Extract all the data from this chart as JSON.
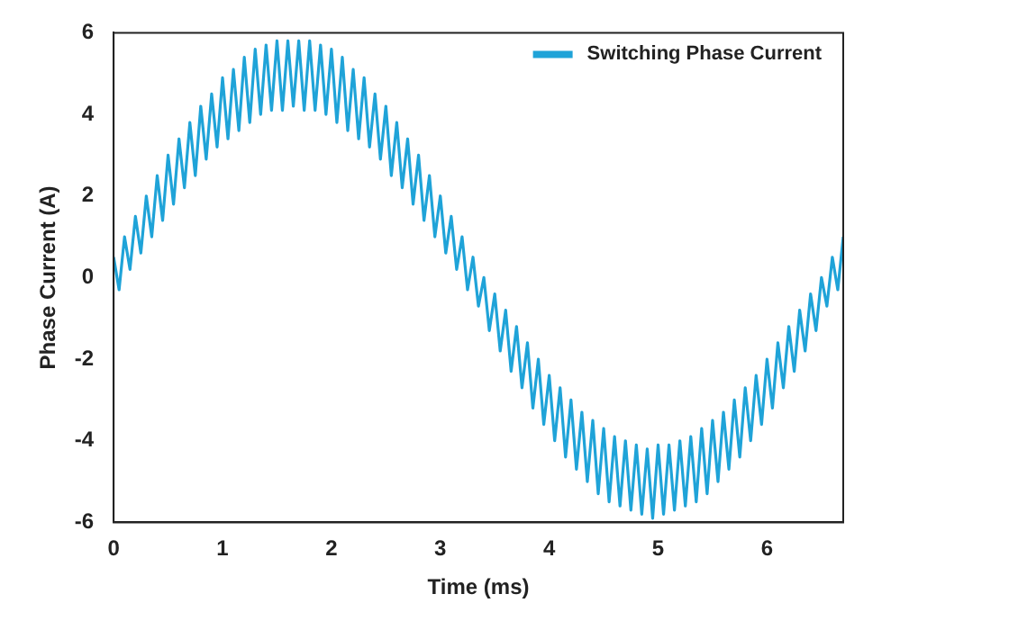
{
  "chart_data": {
    "type": "line",
    "xlabel": "Time (ms)",
    "ylabel": "Phase Current (A)",
    "xlim": [
      0,
      6.7
    ],
    "xticks": [
      0,
      1,
      2,
      3,
      4,
      5,
      6
    ],
    "ylim": [
      -6,
      6
    ],
    "yticks": [
      -6,
      -4,
      -2,
      0,
      2,
      4,
      6
    ],
    "grid": false,
    "legend": "top right",
    "marker": "none",
    "line_style": "solid",
    "series": [
      {
        "name": "Switching Phase Current",
        "color": "#1fa3d8",
        "x": [
          0,
          0.05,
          0.1,
          0.15,
          0.2,
          0.25,
          0.3,
          0.35,
          0.4,
          0.45,
          0.5,
          0.55,
          0.6,
          0.65,
          0.7,
          0.75,
          0.8,
          0.85,
          0.9,
          0.95,
          1.0,
          1.05,
          1.1,
          1.15,
          1.2,
          1.25,
          1.3,
          1.35,
          1.4,
          1.45,
          1.5,
          1.55,
          1.6,
          1.65,
          1.7,
          1.75,
          1.8,
          1.85,
          1.9,
          1.95,
          2.0,
          2.05,
          2.1,
          2.15,
          2.2,
          2.25,
          2.3,
          2.35,
          2.4,
          2.45,
          2.5,
          2.55,
          2.6,
          2.65,
          2.7,
          2.75,
          2.8,
          2.85,
          2.9,
          2.95,
          3.0,
          3.05,
          3.1,
          3.15,
          3.2,
          3.25,
          3.3,
          3.35,
          3.4,
          3.45,
          3.5,
          3.55,
          3.6,
          3.65,
          3.7,
          3.75,
          3.8,
          3.85,
          3.9,
          3.95,
          4.0,
          4.05,
          4.1,
          4.15,
          4.2,
          4.25,
          4.3,
          4.35,
          4.4,
          4.45,
          4.5,
          4.55,
          4.6,
          4.65,
          4.7,
          4.75,
          4.8,
          4.85,
          4.9,
          4.95,
          5.0,
          5.05,
          5.1,
          5.15,
          5.2,
          5.25,
          5.3,
          5.35,
          5.4,
          5.45,
          5.5,
          5.55,
          5.6,
          5.65,
          5.7,
          5.75,
          5.8,
          5.85,
          5.9,
          5.95,
          6.0,
          6.05,
          6.1,
          6.15,
          6.2,
          6.25,
          6.3,
          6.35,
          6.4,
          6.45,
          6.5,
          6.55,
          6.6,
          6.65,
          6.7
        ],
        "values": [
          0.5,
          -0.3,
          1.0,
          0.2,
          1.5,
          0.6,
          2.0,
          1.0,
          2.5,
          1.4,
          3.0,
          1.8,
          3.4,
          2.2,
          3.8,
          2.5,
          4.2,
          2.9,
          4.5,
          3.2,
          4.9,
          3.4,
          5.1,
          3.6,
          5.4,
          3.8,
          5.6,
          4.0,
          5.7,
          4.1,
          5.8,
          4.1,
          5.8,
          4.2,
          5.8,
          4.1,
          5.8,
          4.1,
          5.7,
          4.0,
          5.6,
          3.8,
          5.4,
          3.6,
          5.1,
          3.4,
          4.9,
          3.2,
          4.5,
          2.9,
          4.2,
          2.5,
          3.8,
          2.2,
          3.4,
          1.8,
          3.0,
          1.4,
          2.5,
          1.0,
          2.0,
          0.6,
          1.5,
          0.2,
          1.0,
          -0.3,
          0.5,
          -0.7,
          0.0,
          -1.3,
          -0.4,
          -1.8,
          -0.8,
          -2.3,
          -1.2,
          -2.7,
          -1.6,
          -3.2,
          -2.0,
          -3.6,
          -2.4,
          -4.0,
          -2.7,
          -4.4,
          -3.0,
          -4.7,
          -3.3,
          -5.0,
          -3.5,
          -5.3,
          -3.7,
          -5.5,
          -3.9,
          -5.6,
          -4.0,
          -5.7,
          -4.1,
          -5.8,
          -4.2,
          -5.9,
          -4.1,
          -5.8,
          -4.1,
          -5.7,
          -4.0,
          -5.6,
          -3.9,
          -5.5,
          -3.7,
          -5.3,
          -3.5,
          -5.0,
          -3.3,
          -4.7,
          -3.0,
          -4.4,
          -2.7,
          -4.0,
          -2.4,
          -3.6,
          -2.0,
          -3.2,
          -1.6,
          -2.7,
          -1.2,
          -2.3,
          -0.8,
          -1.8,
          -0.4,
          -1.3,
          0.0,
          -0.7,
          0.5,
          -0.3,
          1.0
        ]
      }
    ]
  }
}
